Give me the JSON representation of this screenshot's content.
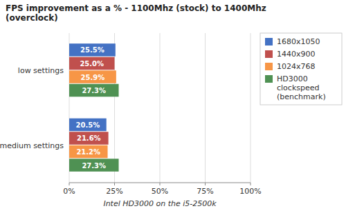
{
  "chart_data": {
    "type": "bar",
    "orientation": "horizontal",
    "title": "FPS improvement as a % - 1100Mhz (stock) to 1400Mhz\n(overclock)",
    "x_label": "Intel HD3000 on the i5-2500k",
    "categories": [
      "low settings",
      "medium settings"
    ],
    "series": [
      {
        "name": "1680x1050",
        "color": "#4472C4",
        "values": [
          25.5,
          20.5
        ],
        "value_labels": [
          "25.5%",
          "20.5%"
        ]
      },
      {
        "name": "1440x900",
        "color": "#C0504D",
        "values": [
          25.0,
          21.6
        ],
        "value_labels": [
          "25.0%",
          "21.6%"
        ]
      },
      {
        "name": "1024x768",
        "color": "#F79646",
        "values": [
          25.9,
          21.2
        ],
        "value_labels": [
          "25.9%",
          "21.2%"
        ]
      },
      {
        "name": "HD3000\nclockspeed\n(benchmark)",
        "color": "#4F9153",
        "values": [
          27.3,
          27.3
        ],
        "value_labels": [
          "27.3%",
          "27.3%"
        ]
      }
    ],
    "xlim": [
      0,
      100
    ],
    "xticks": [
      {
        "value": 0,
        "label": "0%"
      },
      {
        "value": 25,
        "label": "25%"
      },
      {
        "value": 50,
        "label": "50%"
      },
      {
        "value": 75,
        "label": "75%"
      },
      {
        "value": 100,
        "label": "100%"
      }
    ],
    "grid": true,
    "legend": "upper right",
    "data_labels": true
  }
}
